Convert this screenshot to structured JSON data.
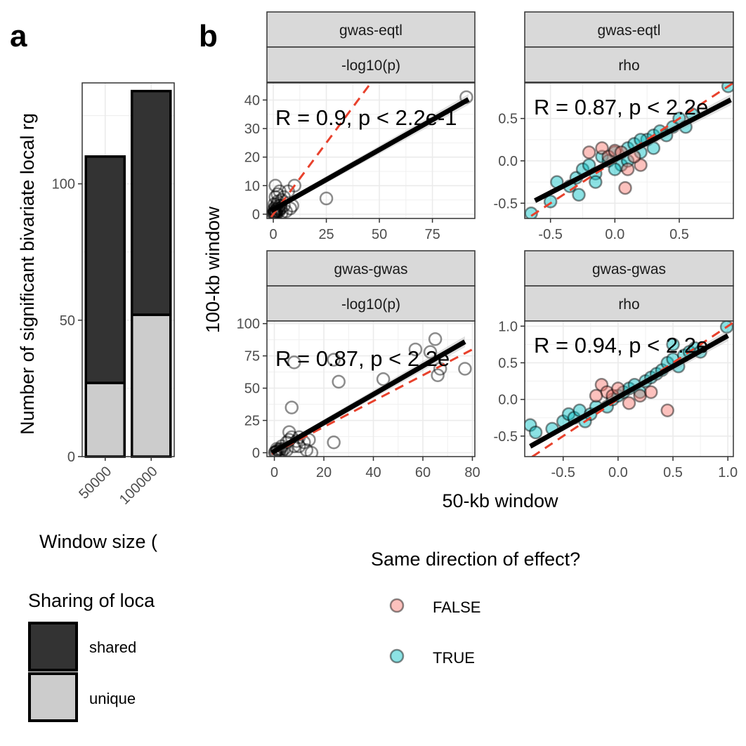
{
  "panel_labels": {
    "a": "a",
    "b": "b"
  },
  "chart_data": [
    {
      "type": "bar",
      "stacked": true,
      "categories": [
        "50000",
        "100000"
      ],
      "series": [
        {
          "name": "unique",
          "values": [
            27,
            52
          ],
          "color": "#cccccc"
        },
        {
          "name": "shared",
          "values": [
            83,
            82
          ],
          "color": "#333333"
        }
      ],
      "totals": [
        110,
        134
      ],
      "ylim": [
        0,
        137
      ],
      "yticks": [
        "0",
        "50",
        "100"
      ],
      "ytick_values": [
        0,
        50,
        100
      ],
      "xlabel": "Window size (",
      "ylabel": "Number of significant bivariate local rg",
      "legend": {
        "title": "Sharing of loca",
        "placement": "bottom-left",
        "entries": [
          {
            "label": "shared",
            "color": "#333333"
          },
          {
            "label": "unique",
            "color": "#cccccc"
          }
        ]
      }
    },
    {
      "type": "scatter",
      "facets": [
        {
          "strip_top": "gwas-eqtl",
          "strip_bottom": "-log10(p)",
          "stat_label": "R = 0.9, p < 2.2e-1",
          "xlim": [
            -3,
            95
          ],
          "ylim": [
            -1.5,
            46
          ],
          "xticks": [
            0,
            25,
            50,
            75
          ],
          "xtick_labels": [
            "0",
            "25",
            "50",
            "75"
          ],
          "yticks": [
            0,
            10,
            20,
            30,
            40
          ],
          "ytick_labels": [
            "0",
            "10",
            "20",
            "30",
            "40"
          ],
          "fit": {
            "x": [
              -1,
              92
            ],
            "y": [
              1.2,
              40.2
            ]
          },
          "identity": {
            "x": [
              -1,
              50
            ],
            "y": [
              -1,
              50
            ]
          },
          "points": [
            [
              0.2,
              0.3
            ],
            [
              0.5,
              0.6
            ],
            [
              0.8,
              0.2
            ],
            [
              1,
              1
            ],
            [
              1.2,
              0.5
            ],
            [
              1.5,
              1.5
            ],
            [
              2,
              2
            ],
            [
              1,
              2.5
            ],
            [
              2.5,
              0.8
            ],
            [
              3,
              3
            ],
            [
              0.3,
              1.8
            ],
            [
              1.8,
              3.5
            ],
            [
              2.2,
              4.5
            ],
            [
              3.5,
              2
            ],
            [
              4,
              5
            ],
            [
              1,
              6
            ],
            [
              5,
              6
            ],
            [
              2,
              7
            ],
            [
              3,
              8
            ],
            [
              1,
              10
            ],
            [
              7,
              8
            ],
            [
              10,
              10
            ],
            [
              8,
              2
            ],
            [
              6,
              1
            ],
            [
              9,
              3
            ],
            [
              25,
              5.5
            ],
            [
              91,
              41
            ],
            [
              0.5,
              3.5
            ],
            [
              1.5,
              0.2
            ],
            [
              4,
              0.5
            ],
            [
              0.1,
              0.1
            ],
            [
              0.4,
              1.2
            ],
            [
              1.7,
              1
            ],
            [
              2.8,
              1.6
            ],
            [
              5,
              3
            ]
          ]
        },
        {
          "strip_top": "gwas-eqtl",
          "strip_bottom": "rho",
          "stat_label": "R = 0.87, p < 2.2e",
          "xlim": [
            -0.7,
            0.92
          ],
          "ylim": [
            -0.68,
            0.92
          ],
          "xticks": [
            -0.5,
            0,
            0.5
          ],
          "xtick_labels": [
            "-0.5",
            "0.0",
            "0.5"
          ],
          "yticks": [
            -0.5,
            0,
            0.5
          ],
          "ytick_labels": [
            "-0.5",
            "0.0",
            "0.5"
          ],
          "fit": {
            "x": [
              -0.62,
              0.9
            ],
            "y": [
              -0.47,
              0.72
            ]
          },
          "identity": {
            "x": [
              -0.75,
              0.95
            ],
            "y": [
              -0.75,
              0.95
            ]
          },
          "points": [
            [
              -0.65,
              -0.62,
              true
            ],
            [
              -0.5,
              -0.48,
              true
            ],
            [
              -0.45,
              -0.25,
              true
            ],
            [
              -0.35,
              -0.3,
              true
            ],
            [
              -0.3,
              -0.2,
              true
            ],
            [
              -0.28,
              -0.4,
              true
            ],
            [
              -0.25,
              -0.1,
              true
            ],
            [
              -0.2,
              -0.05,
              true
            ],
            [
              -0.15,
              -0.15,
              true
            ],
            [
              -0.1,
              0.05,
              true
            ],
            [
              -0.05,
              0,
              true
            ],
            [
              0,
              0.1,
              true
            ],
            [
              0.05,
              -0.05,
              true
            ],
            [
              0.1,
              0.15,
              true
            ],
            [
              0.15,
              0.2,
              true
            ],
            [
              0.2,
              0.1,
              true
            ],
            [
              0.25,
              0.25,
              true
            ],
            [
              0.3,
              0.3,
              true
            ],
            [
              0.35,
              0.35,
              true
            ],
            [
              0.4,
              0.3,
              true
            ],
            [
              0.45,
              0.4,
              true
            ],
            [
              0.5,
              0.5,
              true
            ],
            [
              0.55,
              0.4,
              true
            ],
            [
              0.6,
              0.55,
              true
            ],
            [
              0.88,
              0.88,
              true
            ],
            [
              -0.15,
              -0.25,
              true
            ],
            [
              0,
              -0.1,
              true
            ],
            [
              0.1,
              0,
              true
            ],
            [
              0.2,
              0.25,
              true
            ],
            [
              0.3,
              0.15,
              true
            ],
            [
              -0.1,
              0.15,
              false
            ],
            [
              -0.05,
              0.05,
              false
            ],
            [
              0,
              0.12,
              false
            ],
            [
              0.05,
              0.1,
              false
            ],
            [
              0.1,
              -0.1,
              false
            ],
            [
              0.2,
              -0.05,
              false
            ],
            [
              0.08,
              -0.32,
              false
            ],
            [
              -0.2,
              0.1,
              false
            ],
            [
              0.15,
              0.05,
              false
            ]
          ]
        },
        {
          "strip_top": "gwas-gwas",
          "strip_bottom": "-log10(p)",
          "stat_label": "R = 0.87, p < 2.2e",
          "xlim": [
            -3,
            81
          ],
          "ylim": [
            -3,
            102
          ],
          "xticks": [
            0,
            20,
            40,
            60,
            80
          ],
          "xtick_labels": [
            "0",
            "20",
            "40",
            "60",
            "80"
          ],
          "yticks": [
            0,
            25,
            50,
            75,
            100
          ],
          "ytick_labels": [
            "0",
            "25",
            "50",
            "75",
            "100"
          ],
          "fit": {
            "x": [
              -1,
              77
            ],
            "y": [
              0,
              86
            ]
          },
          "identity": {
            "x": [
              -1,
              80
            ],
            "y": [
              -1,
              80
            ]
          },
          "points": [
            [
              0.5,
              0.5
            ],
            [
              1,
              1
            ],
            [
              1.5,
              2
            ],
            [
              2,
              1
            ],
            [
              2.5,
              3
            ],
            [
              3,
              5
            ],
            [
              4,
              3
            ],
            [
              5,
              8
            ],
            [
              6,
              10
            ],
            [
              7,
              12
            ],
            [
              8,
              5
            ],
            [
              9,
              9
            ],
            [
              10,
              12
            ],
            [
              12,
              8
            ],
            [
              14,
              10
            ],
            [
              15,
              0
            ],
            [
              6,
              16
            ],
            [
              7,
              35
            ],
            [
              8,
              70
            ],
            [
              24,
              72
            ],
            [
              26,
              55
            ],
            [
              24,
              8
            ],
            [
              44,
              57
            ],
            [
              57,
              80
            ],
            [
              63,
              78
            ],
            [
              65,
              88
            ],
            [
              66,
              60
            ],
            [
              67,
              65
            ],
            [
              77,
              65
            ],
            [
              0.2,
              0.2
            ],
            [
              1,
              3
            ],
            [
              3,
              1
            ],
            [
              5,
              2
            ],
            [
              10,
              5
            ],
            [
              13,
              2
            ]
          ]
        },
        {
          "strip_top": "gwas-gwas",
          "strip_bottom": "rho",
          "stat_label": "R = 0.94, p < 2.2e",
          "xlim": [
            -0.85,
            1.05
          ],
          "ylim": [
            -0.78,
            1.07
          ],
          "xticks": [
            -0.5,
            0,
            0.5,
            1
          ],
          "xtick_labels": [
            "-0.5",
            "0.0",
            "0.5",
            "1.0"
          ],
          "yticks": [
            -0.5,
            0,
            0.5,
            1
          ],
          "ytick_labels": [
            "-0.5",
            "0.0",
            "0.5",
            "1.0"
          ],
          "fit": {
            "x": [
              -0.8,
              1.0
            ],
            "y": [
              -0.64,
              0.87
            ]
          },
          "identity": {
            "x": [
              -0.9,
              1.1
            ],
            "y": [
              -0.9,
              1.1
            ]
          },
          "points": [
            [
              -0.8,
              -0.35,
              true
            ],
            [
              -0.75,
              -0.45,
              true
            ],
            [
              -0.6,
              -0.4,
              true
            ],
            [
              -0.5,
              -0.3,
              true
            ],
            [
              -0.45,
              -0.2,
              true
            ],
            [
              -0.4,
              -0.25,
              true
            ],
            [
              -0.35,
              -0.15,
              true
            ],
            [
              -0.3,
              -0.3,
              true
            ],
            [
              -0.25,
              -0.2,
              true
            ],
            [
              -0.2,
              -0.1,
              true
            ],
            [
              -0.1,
              -0.1,
              true
            ],
            [
              -0.05,
              0,
              true
            ],
            [
              0,
              0.05,
              true
            ],
            [
              0.05,
              0.1,
              true
            ],
            [
              0.1,
              0.15,
              true
            ],
            [
              0.15,
              0.2,
              true
            ],
            [
              0.2,
              0.1,
              true
            ],
            [
              0.25,
              0.25,
              true
            ],
            [
              0.3,
              0.3,
              true
            ],
            [
              0.35,
              0.35,
              true
            ],
            [
              0.4,
              0.4,
              true
            ],
            [
              0.45,
              0.5,
              true
            ],
            [
              0.5,
              0.55,
              true
            ],
            [
              0.55,
              0.45,
              true
            ],
            [
              0.6,
              0.6,
              true
            ],
            [
              0.65,
              0.65,
              true
            ],
            [
              0.7,
              0.7,
              true
            ],
            [
              0.75,
              0.65,
              true
            ],
            [
              0.99,
              0.99,
              true
            ],
            [
              0.5,
              0.75,
              true
            ],
            [
              -0.15,
              0.2,
              false
            ],
            [
              -0.1,
              0.1,
              false
            ],
            [
              -0.05,
              0.05,
              false
            ],
            [
              0,
              0.15,
              false
            ],
            [
              0.1,
              -0.05,
              false
            ],
            [
              0.2,
              0.05,
              false
            ],
            [
              0.3,
              0.1,
              false
            ],
            [
              0.45,
              -0.15,
              false
            ],
            [
              -0.2,
              0.05,
              false
            ]
          ]
        }
      ],
      "xlabel": "50-kb window",
      "ylabel": "100-kb window",
      "legend": {
        "title": "Same direction of effect?",
        "placement": "bottom",
        "entries": [
          {
            "label": "FALSE",
            "color": "#f8766d"
          },
          {
            "label": "TRUE",
            "color": "#00bfc4"
          }
        ]
      }
    }
  ]
}
